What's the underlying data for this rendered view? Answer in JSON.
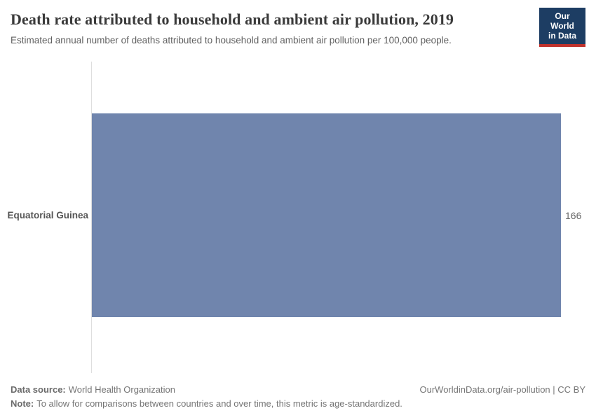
{
  "header": {
    "title": "Death rate attributed to household and ambient air pollution, 2019",
    "subtitle": "Estimated annual number of deaths attributed to household and ambient air pollution per 100,000 people."
  },
  "logo": {
    "line1": "Our World",
    "line2": "in Data"
  },
  "chart_data": {
    "type": "bar",
    "orientation": "horizontal",
    "title": "Death rate attributed to household and ambient air pollution, 2019",
    "categories": [
      "Equatorial Guinea"
    ],
    "values": [
      166
    ],
    "value_labels": [
      "166"
    ],
    "xlabel": "",
    "ylabel": "",
    "xlim": [
      0,
      166
    ],
    "grid": false,
    "legend": false
  },
  "footer": {
    "data_source_label": "Data source:",
    "data_source_value": "World Health Organization",
    "note_label": "Note:",
    "note_value": "To allow for comparisons between countries and over time, this metric is age-standardized.",
    "link": "OurWorldinData.org/air-pollution | CC BY"
  },
  "colors": {
    "bar": "#7085ad",
    "logo_background": "#1d3d63",
    "logo_underline": "#c1322c",
    "axis_line": "#dedede",
    "title_text": "#3a3a3a",
    "subtitle_text": "#616161"
  }
}
